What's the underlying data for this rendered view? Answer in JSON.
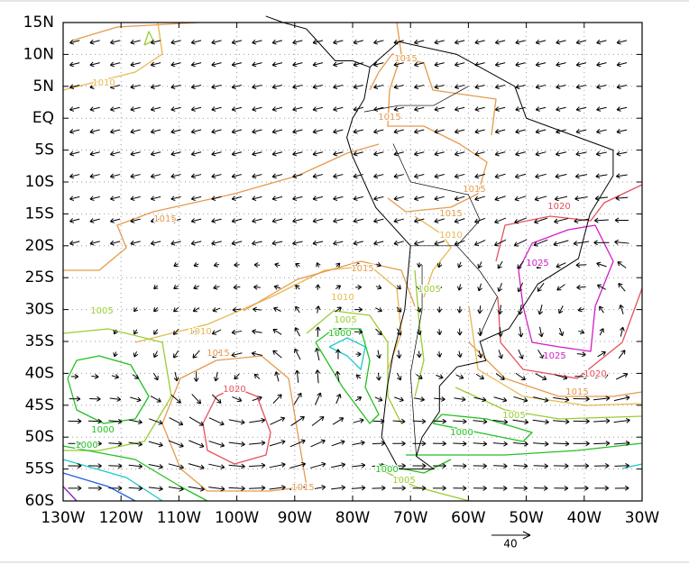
{
  "lat_labels": [
    "15N",
    "10N",
    "5N",
    "EQ",
    "5S",
    "10S",
    "15S",
    "20S",
    "25S",
    "30S",
    "35S",
    "40S",
    "45S",
    "50S",
    "55S",
    "60S"
  ],
  "lon_labels": [
    "130W",
    "120W",
    "110W",
    "100W",
    "90W",
    "80W",
    "70W",
    "60W",
    "50W",
    "40W",
    "30W"
  ],
  "levels": [
    {
      "value": 1000,
      "color": "#22c022"
    },
    {
      "value": 1005,
      "color": "#9acd32"
    },
    {
      "value": 1010,
      "color": "#e8b84e"
    },
    {
      "value": 1015,
      "color": "#e69a4c"
    },
    {
      "value": 1020,
      "color": "#e6505a"
    },
    {
      "value": 1025,
      "color": "#d21ec8"
    }
  ],
  "contour_labels": [
    1010,
    1015,
    1015,
    1015,
    1015,
    1015,
    1010,
    1020,
    1025,
    1025,
    1020,
    1015,
    1005,
    1000,
    1015,
    1010,
    1005,
    1000,
    1005,
    1005,
    1010,
    1015,
    1020,
    1000,
    1000,
    1000,
    1005,
    1015
  ],
  "reference_vector": 40
}
